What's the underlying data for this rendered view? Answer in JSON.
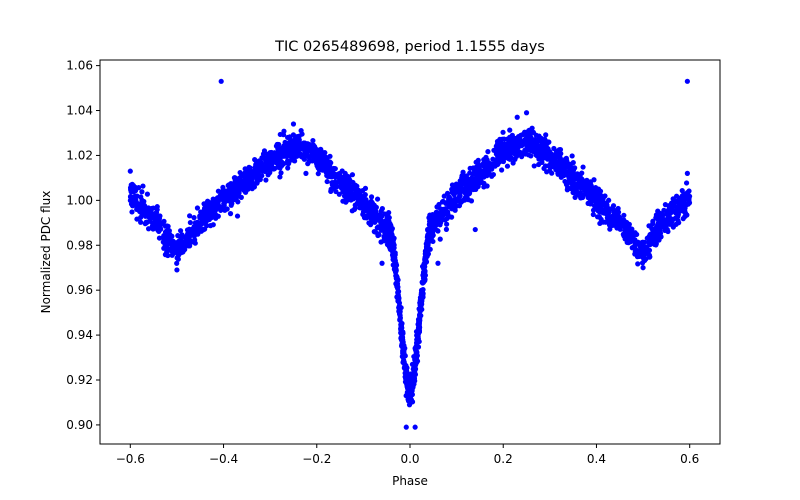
{
  "chart_data": {
    "type": "scatter",
    "title": "TIC 0265489698, period 1.1555 days",
    "xlabel": "Phase",
    "ylabel": "Normalized PDC flux",
    "xlim": [
      -0.665,
      0.665
    ],
    "ylim": [
      0.8915,
      1.0625
    ],
    "xticks": [
      -0.6,
      -0.4,
      -0.2,
      0.0,
      0.2,
      0.4,
      0.6
    ],
    "xtick_labels": [
      "−0.6",
      "−0.4",
      "−0.2",
      "0.0",
      "0.2",
      "0.4",
      "0.6"
    ],
    "yticks": [
      0.9,
      0.92,
      0.94,
      0.96,
      0.98,
      1.0,
      1.02,
      1.04,
      1.06
    ],
    "ytick_labels": [
      "0.90",
      "0.92",
      "0.94",
      "0.96",
      "0.98",
      "1.00",
      "1.02",
      "1.04",
      "1.06"
    ],
    "grid": false,
    "marker_color": "#0000ff",
    "profile": {
      "x": [
        -0.6,
        -0.55,
        -0.5,
        -0.45,
        -0.4,
        -0.3,
        -0.25,
        -0.2,
        -0.1,
        -0.06,
        -0.04,
        -0.03,
        -0.02,
        -0.01,
        0.0,
        0.01,
        0.02,
        0.03,
        0.04,
        0.06,
        0.1,
        0.2,
        0.25,
        0.3,
        0.4,
        0.45,
        0.5,
        0.55,
        0.6
      ],
      "y": [
        1.002,
        0.992,
        0.977,
        0.99,
        1.0,
        1.018,
        1.025,
        1.02,
        0.998,
        0.99,
        0.985,
        0.968,
        0.945,
        0.925,
        0.912,
        0.925,
        0.945,
        0.968,
        0.985,
        0.992,
        1.002,
        1.022,
        1.026,
        1.02,
        1.0,
        0.99,
        0.977,
        0.992,
        1.002
      ]
    },
    "outliers": [
      {
        "x": -0.405,
        "y": 1.053
      },
      {
        "x": 0.595,
        "y": 1.053
      },
      {
        "x": -0.008,
        "y": 0.899
      },
      {
        "x": 0.011,
        "y": 0.899
      },
      {
        "x": 0.25,
        "y": 1.039
      },
      {
        "x": 0.23,
        "y": 1.037
      },
      {
        "x": -0.25,
        "y": 1.034
      },
      {
        "x": -0.17,
        "y": 1.004
      },
      {
        "x": 0.12,
        "y": 1.001
      },
      {
        "x": 0.14,
        "y": 0.987
      },
      {
        "x": -0.5,
        "y": 0.969
      },
      {
        "x": 0.5,
        "y": 0.97
      },
      {
        "x": 0.595,
        "y": 1.012
      },
      {
        "x": -0.6,
        "y": 1.013
      },
      {
        "x": 0.06,
        "y": 0.972
      },
      {
        "x": -0.06,
        "y": 0.972
      },
      {
        "x": 0.43,
        "y": 0.99
      },
      {
        "x": -0.37,
        "y": 0.993
      }
    ]
  }
}
